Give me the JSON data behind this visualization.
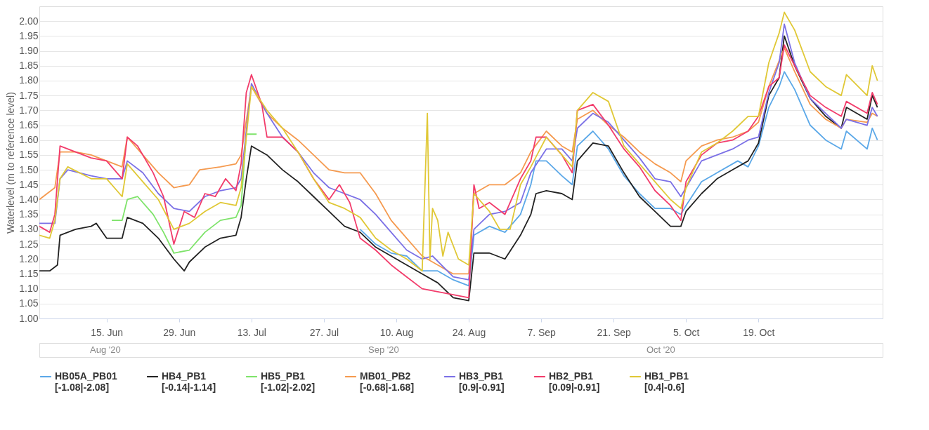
{
  "chart_data": {
    "type": "line",
    "ylabel": "Waterlevel (m to reference level)",
    "xlim": [
      "2020-06-02",
      "2020-11-12"
    ],
    "xticks": [
      {
        "value": "2020-06-15",
        "label": "15. Jun"
      },
      {
        "value": "2020-06-29",
        "label": "29. Jun"
      },
      {
        "value": "2020-07-13",
        "label": "13. Jul"
      },
      {
        "value": "2020-07-27",
        "label": "27. Jul"
      },
      {
        "value": "2020-08-10",
        "label": "10. Aug"
      },
      {
        "value": "2020-08-24",
        "label": "24. Aug"
      },
      {
        "value": "2020-09-07",
        "label": "7. Sep"
      },
      {
        "value": "2020-09-21",
        "label": "21. Sep"
      },
      {
        "value": "2020-10-05",
        "label": "5. Oct"
      },
      {
        "value": "2020-10-19",
        "label": "19. Oct"
      }
    ],
    "ylim": [
      1.0,
      2.05
    ],
    "yticks": [
      {
        "value": 1.0,
        "label": "1.00"
      },
      {
        "value": 1.05,
        "label": "1.05"
      },
      {
        "value": 1.1,
        "label": "1.10"
      },
      {
        "value": 1.15,
        "label": "1.15"
      },
      {
        "value": 1.2,
        "label": "1.20"
      },
      {
        "value": 1.25,
        "label": "1.25"
      },
      {
        "value": 1.3,
        "label": "1.30"
      },
      {
        "value": 1.35,
        "label": "1.35"
      },
      {
        "value": 1.4,
        "label": "1.40"
      },
      {
        "value": 1.45,
        "label": "1.45"
      },
      {
        "value": 1.5,
        "label": "1.50"
      },
      {
        "value": 1.55,
        "label": "1.55"
      },
      {
        "value": 1.6,
        "label": "1.60"
      },
      {
        "value": 1.65,
        "label": "1.65"
      },
      {
        "value": 1.7,
        "label": "1.70"
      },
      {
        "value": 1.75,
        "label": "1.75"
      },
      {
        "value": 1.8,
        "label": "1.80"
      },
      {
        "value": 1.85,
        "label": "1.85"
      },
      {
        "value": 1.9,
        "label": "1.90"
      },
      {
        "value": 1.95,
        "label": "1.95"
      },
      {
        "value": 2.0,
        "label": "2.00"
      }
    ],
    "grid": "y",
    "legend": "bottom",
    "annotations": [
      "Aug '20",
      "Sep '20",
      "Oct '20"
    ],
    "series": [
      {
        "name": "HB05A_PB01\n[-1.08|-2.08]",
        "color": "#5ba8e8",
        "x": [
          "2020-08-03",
          "2020-08-06",
          "2020-08-09",
          "2020-08-12",
          "2020-08-15",
          "2020-08-18",
          "2020-08-21",
          "2020-08-24",
          "2020-08-25",
          "2020-08-28",
          "2020-08-31",
          "2020-09-03",
          "2020-09-05",
          "2020-09-06",
          "2020-09-08",
          "2020-09-11",
          "2020-09-13",
          "2020-09-14",
          "2020-09-17",
          "2020-09-20",
          "2020-09-23",
          "2020-09-26",
          "2020-09-29",
          "2020-10-02",
          "2020-10-04",
          "2020-10-05",
          "2020-10-08",
          "2020-10-11",
          "2020-10-14",
          "2020-10-15",
          "2020-10-17",
          "2020-10-19",
          "2020-10-21",
          "2020-10-23",
          "2020-10-24",
          "2020-10-26",
          "2020-10-29",
          "2020-11-01",
          "2020-11-04",
          "2020-11-05",
          "2020-11-09",
          "2020-11-10",
          "2020-11-11"
        ],
        "values": [
          1.3,
          1.25,
          1.22,
          1.21,
          1.16,
          1.16,
          1.13,
          1.11,
          1.28,
          1.31,
          1.29,
          1.35,
          1.45,
          1.53,
          1.53,
          1.48,
          1.45,
          1.58,
          1.63,
          1.57,
          1.48,
          1.42,
          1.37,
          1.37,
          1.35,
          1.38,
          1.46,
          1.49,
          1.52,
          1.53,
          1.51,
          1.58,
          1.71,
          1.78,
          1.83,
          1.77,
          1.65,
          1.6,
          1.57,
          1.63,
          1.57,
          1.64,
          1.6
        ]
      },
      {
        "name": "HB4_PB1\n[-0.14|-1.14]",
        "color": "#222222",
        "x": [
          "2020-06-02",
          "2020-06-04",
          "2020-06-05T12:00",
          "2020-06-06",
          "2020-06-09",
          "2020-06-12",
          "2020-06-13",
          "2020-06-15",
          "2020-06-18",
          "2020-06-19",
          "2020-06-22",
          "2020-06-25",
          "2020-06-28",
          "2020-06-30",
          "2020-07-01",
          "2020-07-04",
          "2020-07-07",
          "2020-07-10",
          "2020-07-11",
          "2020-07-12",
          "2020-07-13",
          "2020-07-16",
          "2020-07-19",
          "2020-07-22",
          "2020-07-25",
          "2020-07-28",
          "2020-07-31",
          "2020-08-03",
          "2020-08-06",
          "2020-08-09",
          "2020-08-12",
          "2020-08-15",
          "2020-08-18",
          "2020-08-21",
          "2020-08-24",
          "2020-08-25",
          "2020-08-28",
          "2020-08-31",
          "2020-09-03",
          "2020-09-05",
          "2020-09-06",
          "2020-09-08",
          "2020-09-11",
          "2020-09-13",
          "2020-09-14",
          "2020-09-17",
          "2020-09-20",
          "2020-09-23",
          "2020-09-26",
          "2020-09-29",
          "2020-10-02",
          "2020-10-04",
          "2020-10-05",
          "2020-10-08",
          "2020-10-11",
          "2020-10-14",
          "2020-10-17",
          "2020-10-19",
          "2020-10-21",
          "2020-10-23",
          "2020-10-24",
          "2020-10-26",
          "2020-10-29",
          "2020-11-01",
          "2020-11-04",
          "2020-11-05",
          "2020-11-09",
          "2020-11-10",
          "2020-11-11"
        ],
        "values": [
          1.16,
          1.16,
          1.18,
          1.28,
          1.3,
          1.31,
          1.32,
          1.27,
          1.27,
          1.34,
          1.32,
          1.27,
          1.2,
          1.16,
          1.19,
          1.24,
          1.27,
          1.28,
          1.34,
          1.47,
          1.58,
          1.55,
          1.5,
          1.46,
          1.41,
          1.36,
          1.31,
          1.29,
          1.24,
          1.21,
          1.18,
          1.15,
          1.12,
          1.07,
          1.06,
          1.22,
          1.22,
          1.2,
          1.28,
          1.35,
          1.42,
          1.43,
          1.42,
          1.4,
          1.53,
          1.59,
          1.58,
          1.49,
          1.41,
          1.36,
          1.31,
          1.31,
          1.36,
          1.42,
          1.47,
          1.5,
          1.53,
          1.59,
          1.75,
          1.81,
          1.95,
          1.85,
          1.74,
          1.68,
          1.64,
          1.71,
          1.67,
          1.75,
          1.71
        ]
      },
      {
        "name": "HB5_PB1\n[-1.02|-2.02]",
        "color": "#7ee36a",
        "x": [
          "2020-06-16",
          "2020-06-18",
          "2020-06-19",
          "2020-06-21",
          "2020-06-24",
          "2020-06-26",
          "2020-06-28",
          "2020-07-01",
          "2020-07-04",
          "2020-07-07",
          "2020-07-10",
          "2020-07-11",
          "2020-07-12",
          "2020-07-14"
        ],
        "values": [
          1.33,
          1.33,
          1.4,
          1.41,
          1.35,
          1.29,
          1.22,
          1.23,
          1.29,
          1.33,
          1.34,
          1.38,
          1.62,
          1.62
        ]
      },
      {
        "name": "MB01_PB2\n[-0.68|-1.68]",
        "color": "#f59a4f",
        "x": [
          "2020-06-02",
          "2020-06-05",
          "2020-06-06",
          "2020-06-09",
          "2020-06-12",
          "2020-06-15",
          "2020-06-18",
          "2020-06-19",
          "2020-06-22",
          "2020-06-25",
          "2020-06-28",
          "2020-07-01",
          "2020-07-03",
          "2020-07-07",
          "2020-07-10",
          "2020-07-11",
          "2020-07-13",
          "2020-07-16",
          "2020-07-19",
          "2020-07-22",
          "2020-07-25",
          "2020-07-28",
          "2020-07-31",
          "2020-08-03",
          "2020-08-06",
          "2020-08-09",
          "2020-08-12",
          "2020-08-15",
          "2020-08-18",
          "2020-08-21",
          "2020-08-24",
          "2020-08-25",
          "2020-08-28",
          "2020-08-31",
          "2020-09-03",
          "2020-09-05",
          "2020-09-08",
          "2020-09-11",
          "2020-09-13",
          "2020-09-14",
          "2020-09-17",
          "2020-09-20",
          "2020-09-23",
          "2020-09-26",
          "2020-09-29",
          "2020-10-02",
          "2020-10-04",
          "2020-10-05",
          "2020-10-08",
          "2020-10-11",
          "2020-10-14",
          "2020-10-17",
          "2020-10-19",
          "2020-10-21",
          "2020-10-24",
          "2020-10-26",
          "2020-10-29",
          "2020-11-01",
          "2020-11-04",
          "2020-11-05",
          "2020-11-09",
          "2020-11-10",
          "2020-11-11"
        ],
        "values": [
          1.4,
          1.44,
          1.56,
          1.56,
          1.55,
          1.53,
          1.51,
          1.61,
          1.55,
          1.49,
          1.44,
          1.45,
          1.5,
          1.51,
          1.52,
          1.55,
          1.78,
          1.69,
          1.64,
          1.6,
          1.55,
          1.5,
          1.49,
          1.49,
          1.42,
          1.33,
          1.27,
          1.21,
          1.18,
          1.15,
          1.15,
          1.42,
          1.45,
          1.45,
          1.49,
          1.56,
          1.63,
          1.58,
          1.56,
          1.67,
          1.7,
          1.65,
          1.61,
          1.56,
          1.52,
          1.49,
          1.46,
          1.53,
          1.58,
          1.6,
          1.61,
          1.63,
          1.66,
          1.78,
          1.91,
          1.83,
          1.72,
          1.67,
          1.64,
          1.67,
          1.66,
          1.69,
          1.68
        ]
      },
      {
        "name": "HB3_PB1\n[0.9|-0.91]",
        "color": "#7b70e6",
        "x": [
          "2020-06-02",
          "2020-06-05",
          "2020-06-06",
          "2020-06-07T12:00",
          "2020-06-12",
          "2020-06-15",
          "2020-06-18",
          "2020-06-19",
          "2020-06-22",
          "2020-06-25",
          "2020-06-28",
          "2020-07-01",
          "2020-07-04",
          "2020-07-07",
          "2020-07-10",
          "2020-07-11",
          "2020-07-13",
          "2020-07-16",
          "2020-07-19",
          "2020-07-22",
          "2020-07-25",
          "2020-07-28",
          "2020-07-31",
          "2020-08-03",
          "2020-08-06",
          "2020-08-09",
          "2020-08-12",
          "2020-08-15",
          "2020-08-17",
          "2020-08-21",
          "2020-08-24",
          "2020-08-25",
          "2020-08-28",
          "2020-08-31",
          "2020-09-03",
          "2020-09-05",
          "2020-09-08",
          "2020-09-11",
          "2020-09-13",
          "2020-09-14",
          "2020-09-17",
          "2020-09-20",
          "2020-09-23",
          "2020-09-26",
          "2020-09-29",
          "2020-10-02",
          "2020-10-04",
          "2020-10-05",
          "2020-10-08",
          "2020-10-11",
          "2020-10-14",
          "2020-10-17",
          "2020-10-19",
          "2020-10-21",
          "2020-10-23",
          "2020-10-24",
          "2020-10-26",
          "2020-10-29",
          "2020-11-01",
          "2020-11-04",
          "2020-11-05",
          "2020-11-09",
          "2020-11-10",
          "2020-11-11"
        ],
        "values": [
          1.32,
          1.32,
          1.47,
          1.5,
          1.48,
          1.47,
          1.47,
          1.53,
          1.49,
          1.42,
          1.37,
          1.36,
          1.41,
          1.43,
          1.44,
          1.47,
          1.79,
          1.69,
          1.61,
          1.56,
          1.49,
          1.44,
          1.42,
          1.4,
          1.35,
          1.29,
          1.23,
          1.2,
          1.21,
          1.14,
          1.13,
          1.3,
          1.35,
          1.36,
          1.39,
          1.49,
          1.57,
          1.57,
          1.53,
          1.64,
          1.69,
          1.66,
          1.6,
          1.54,
          1.47,
          1.46,
          1.41,
          1.44,
          1.53,
          1.55,
          1.57,
          1.6,
          1.61,
          1.76,
          1.86,
          1.99,
          1.86,
          1.74,
          1.69,
          1.64,
          1.67,
          1.65,
          1.71,
          1.68
        ]
      },
      {
        "name": "HB2_PB1\n[0.09|-0.91]",
        "color": "#f23c6b",
        "x": [
          "2020-06-02",
          "2020-06-04",
          "2020-06-05",
          "2020-06-06",
          "2020-06-09",
          "2020-06-12",
          "2020-06-15",
          "2020-06-18",
          "2020-06-19",
          "2020-06-21",
          "2020-06-24",
          "2020-06-26",
          "2020-06-28",
          "2020-06-30",
          "2020-07-02",
          "2020-07-04",
          "2020-07-06",
          "2020-07-08",
          "2020-07-10",
          "2020-07-11",
          "2020-07-12",
          "2020-07-13",
          "2020-07-15",
          "2020-07-16",
          "2020-07-19",
          "2020-07-22",
          "2020-07-25",
          "2020-07-28",
          "2020-07-30",
          "2020-08-01",
          "2020-08-03",
          "2020-08-06",
          "2020-08-09",
          "2020-08-12",
          "2020-08-15",
          "2020-08-18",
          "2020-08-21",
          "2020-08-24",
          "2020-08-25",
          "2020-08-26",
          "2020-08-28",
          "2020-08-31",
          "2020-09-03",
          "2020-09-05",
          "2020-09-06",
          "2020-09-08",
          "2020-09-11",
          "2020-09-13",
          "2020-09-14",
          "2020-09-17",
          "2020-09-20",
          "2020-09-23",
          "2020-09-26",
          "2020-09-29",
          "2020-10-02",
          "2020-10-04",
          "2020-10-05",
          "2020-10-08",
          "2020-10-11",
          "2020-10-14",
          "2020-10-17",
          "2020-10-19",
          "2020-10-21",
          "2020-10-23",
          "2020-10-24",
          "2020-10-26",
          "2020-10-29",
          "2020-11-01",
          "2020-11-04",
          "2020-11-05",
          "2020-11-09",
          "2020-11-10",
          "2020-11-11"
        ],
        "values": [
          1.31,
          1.29,
          1.35,
          1.58,
          1.56,
          1.54,
          1.53,
          1.47,
          1.61,
          1.58,
          1.49,
          1.41,
          1.25,
          1.36,
          1.34,
          1.42,
          1.41,
          1.47,
          1.43,
          1.52,
          1.76,
          1.82,
          1.72,
          1.61,
          1.61,
          1.56,
          1.47,
          1.4,
          1.45,
          1.39,
          1.27,
          1.23,
          1.18,
          1.14,
          1.1,
          1.09,
          1.08,
          1.07,
          1.45,
          1.37,
          1.39,
          1.35,
          1.47,
          1.53,
          1.61,
          1.61,
          1.55,
          1.49,
          1.7,
          1.72,
          1.65,
          1.57,
          1.51,
          1.43,
          1.38,
          1.33,
          1.46,
          1.55,
          1.59,
          1.6,
          1.63,
          1.68,
          1.78,
          1.81,
          1.92,
          1.85,
          1.75,
          1.71,
          1.68,
          1.73,
          1.69,
          1.76,
          1.72
        ]
      },
      {
        "name": "HB1_PB1\n[0.4|-0.6]",
        "color": "#e0c836",
        "x": [
          "2020-06-02",
          "2020-06-04",
          "2020-06-05",
          "2020-06-06",
          "2020-06-07T12:00",
          "2020-06-12",
          "2020-06-15",
          "2020-06-18",
          "2020-06-19",
          "2020-06-22",
          "2020-06-25",
          "2020-06-28",
          "2020-07-01",
          "2020-07-04",
          "2020-07-07",
          "2020-07-10",
          "2020-07-11",
          "2020-07-13",
          "2020-07-16",
          "2020-07-19",
          "2020-07-22",
          "2020-07-25",
          "2020-07-28",
          "2020-07-31",
          "2020-08-03",
          "2020-08-06",
          "2020-08-09",
          "2020-08-12",
          "2020-08-15",
          "2020-08-16",
          "2020-08-16T12:00",
          "2020-08-17",
          "2020-08-18",
          "2020-08-19",
          "2020-08-20",
          "2020-08-22",
          "2020-08-24",
          "2020-08-25",
          "2020-08-28",
          "2020-08-30",
          "2020-09-01",
          "2020-09-03",
          "2020-09-05",
          "2020-09-08",
          "2020-09-11",
          "2020-09-13",
          "2020-09-14",
          "2020-09-17",
          "2020-09-20",
          "2020-09-23",
          "2020-09-26",
          "2020-09-29",
          "2020-10-02",
          "2020-10-04",
          "2020-10-05",
          "2020-10-08",
          "2020-10-11",
          "2020-10-14",
          "2020-10-17",
          "2020-10-19",
          "2020-10-21",
          "2020-10-23",
          "2020-10-24",
          "2020-10-26",
          "2020-10-29",
          "2020-11-01",
          "2020-11-04",
          "2020-11-05",
          "2020-11-09",
          "2020-11-10",
          "2020-11-11"
        ],
        "values": [
          1.28,
          1.27,
          1.33,
          1.47,
          1.51,
          1.47,
          1.47,
          1.41,
          1.52,
          1.46,
          1.4,
          1.3,
          1.32,
          1.36,
          1.39,
          1.38,
          1.44,
          1.78,
          1.7,
          1.64,
          1.56,
          1.47,
          1.39,
          1.37,
          1.34,
          1.27,
          1.23,
          1.2,
          1.16,
          1.69,
          1.2,
          1.37,
          1.33,
          1.21,
          1.29,
          1.2,
          1.18,
          1.42,
          1.36,
          1.3,
          1.3,
          1.45,
          1.51,
          1.61,
          1.55,
          1.51,
          1.7,
          1.76,
          1.73,
          1.58,
          1.52,
          1.46,
          1.4,
          1.37,
          1.44,
          1.56,
          1.59,
          1.63,
          1.68,
          1.68,
          1.86,
          1.96,
          2.03,
          1.97,
          1.83,
          1.78,
          1.75,
          1.82,
          1.75,
          1.85,
          1.8
        ]
      }
    ]
  }
}
